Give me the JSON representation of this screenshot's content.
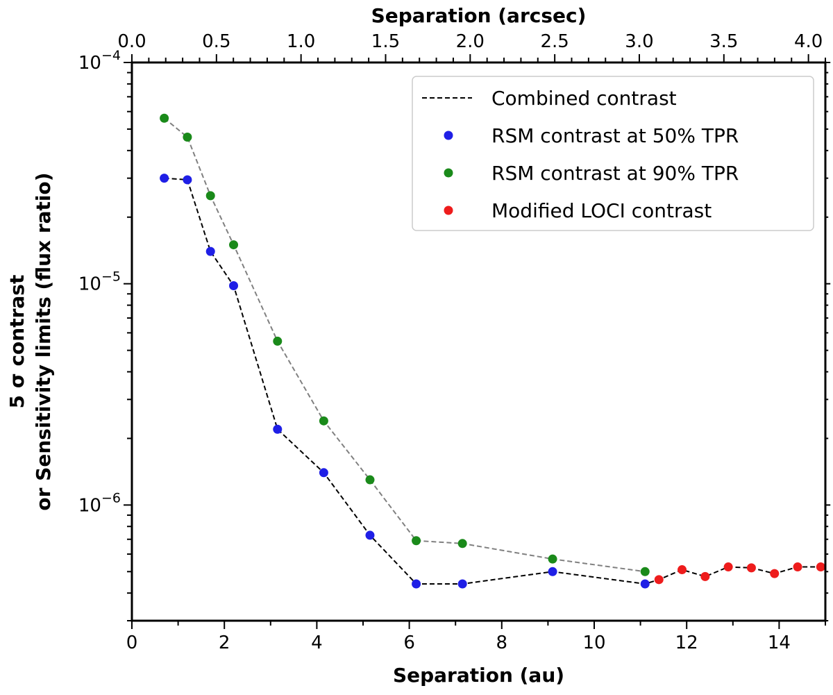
{
  "chart_data": {
    "type": "scatter",
    "title": "",
    "xlabel": "Separation (au)",
    "x2label": "Separation (arcsec)",
    "ylabel_line1": "5 σ contrast",
    "ylabel_line2": "or Sensitivity limits (flux ratio)",
    "xlim": [
      0,
      15
    ],
    "x2lim": [
      0,
      4.1
    ],
    "ylim": [
      3e-07,
      0.0001
    ],
    "yscale": "log",
    "x_major_ticks": [
      "0",
      "2",
      "4",
      "6",
      "8",
      "10",
      "12",
      "14"
    ],
    "x2_major_ticks": [
      "0.0",
      "0.5",
      "1.0",
      "1.5",
      "2.0",
      "2.5",
      "3.0",
      "3.5",
      "4.0"
    ],
    "y_tick_labels": [
      {
        "value": 0.0001,
        "base": "10",
        "exp": "−4"
      },
      {
        "value": 1e-05,
        "base": "10",
        "exp": "−5"
      },
      {
        "value": 1e-06,
        "base": "10",
        "exp": "−6"
      }
    ],
    "legend_position": "top-right",
    "series": [
      {
        "name": "RSM contrast at 90% TPR",
        "color": "#1a8a1a",
        "line_color": "#808080",
        "line_style": "dashed",
        "x": [
          0.7,
          1.2,
          1.7,
          2.2,
          3.15,
          4.15,
          5.15,
          6.15,
          7.15,
          9.1,
          11.1
        ],
        "y": [
          5.6e-05,
          4.6e-05,
          2.5e-05,
          1.5e-05,
          5.5e-06,
          2.4e-06,
          1.3e-06,
          6.9e-07,
          6.7e-07,
          5.7e-07,
          5e-07
        ]
      },
      {
        "name": "RSM contrast at 50% TPR",
        "color": "#1f1fe6",
        "line_color": "#000000",
        "line_style": "dashed",
        "x": [
          0.7,
          1.2,
          1.7,
          2.2,
          3.15,
          4.15,
          5.15,
          6.15,
          7.15,
          9.1,
          11.1
        ],
        "y": [
          3e-05,
          2.95e-05,
          1.4e-05,
          9.8e-06,
          2.2e-06,
          1.4e-06,
          7.3e-07,
          4.4e-07,
          4.4e-07,
          5e-07,
          4.4e-07
        ]
      },
      {
        "name": "Modified LOCI contrast",
        "color": "#ee1c1c",
        "line_color": "#000000",
        "line_style": "dashed",
        "x": [
          11.4,
          11.9,
          12.4,
          12.9,
          13.4,
          13.9,
          14.4,
          14.9
        ],
        "y": [
          4.6e-07,
          5.1e-07,
          4.75e-07,
          5.25e-07,
          5.2e-07,
          4.9e-07,
          5.25e-07,
          5.25e-07
        ]
      }
    ],
    "legend": [
      {
        "label": "Combined contrast",
        "kind": "line",
        "color": "#000000"
      },
      {
        "label": "RSM contrast at 50% TPR",
        "kind": "marker",
        "color": "#1f1fe6"
      },
      {
        "label": "RSM contrast at 90% TPR",
        "kind": "marker",
        "color": "#1a8a1a"
      },
      {
        "label": "Modified LOCI contrast",
        "kind": "marker",
        "color": "#ee1c1c"
      }
    ]
  }
}
